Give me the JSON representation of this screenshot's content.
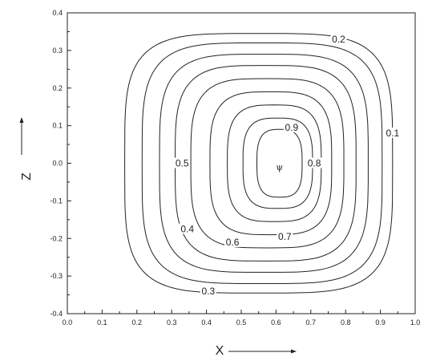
{
  "chart_data": {
    "type": "contour",
    "title": "",
    "xlabel": "X",
    "ylabel": "Z",
    "xlim": [
      0.0,
      1.0
    ],
    "ylim": [
      -0.4,
      0.4
    ],
    "x_ticks": [
      "0.0",
      "0.1",
      "0.2",
      "0.3",
      "0.4",
      "0.5",
      "0.6",
      "0.7",
      "0.8",
      "0.9",
      "1.0"
    ],
    "y_ticks": [
      "-0.4",
      "-0.3",
      "-0.2",
      "-0.1",
      "0.0",
      "0.1",
      "0.2",
      "0.3",
      "0.4"
    ],
    "grid": false,
    "center_marker": {
      "label": "ψ",
      "x": 0.61,
      "z": -0.01
    },
    "contours": [
      {
        "level": 0.1,
        "label": "0.1",
        "cx": 0.55,
        "cz": 0.0,
        "rx": 0.385,
        "rz": 0.345,
        "label_at": [
          0.935,
          0.08
        ]
      },
      {
        "level": 0.2,
        "label": "0.2",
        "cx": 0.56,
        "cz": 0.0,
        "rx": 0.345,
        "rz": 0.32,
        "label_at": [
          0.78,
          0.33
        ]
      },
      {
        "level": 0.3,
        "label": "0.3",
        "cx": 0.565,
        "cz": 0.0,
        "rx": 0.3,
        "rz": 0.29,
        "label_at": [
          0.405,
          -0.34
        ]
      },
      {
        "level": 0.4,
        "label": "0.4",
        "cx": 0.57,
        "cz": 0.0,
        "rx": 0.26,
        "rz": 0.26,
        "label_at": [
          0.345,
          -0.175
        ]
      },
      {
        "level": 0.5,
        "label": "0.5",
        "cx": 0.575,
        "cz": 0.0,
        "rx": 0.22,
        "rz": 0.225,
        "label_at": [
          0.33,
          0.0
        ]
      },
      {
        "level": 0.6,
        "label": "0.6",
        "cx": 0.585,
        "cz": 0.0,
        "rx": 0.175,
        "rz": 0.19,
        "label_at": [
          0.475,
          -0.21
        ]
      },
      {
        "level": 0.7,
        "label": "0.7",
        "cx": 0.595,
        "cz": 0.0,
        "rx": 0.135,
        "rz": 0.155,
        "label_at": [
          0.625,
          -0.195
        ]
      },
      {
        "level": 0.8,
        "label": "0.8",
        "cx": 0.605,
        "cz": 0.0,
        "rx": 0.1,
        "rz": 0.12,
        "label_at": [
          0.71,
          0.0
        ]
      },
      {
        "level": 0.9,
        "label": "0.9",
        "cx": 0.61,
        "cz": 0.0,
        "rx": 0.065,
        "rz": 0.09,
        "label_at": [
          0.645,
          0.095
        ]
      }
    ]
  }
}
